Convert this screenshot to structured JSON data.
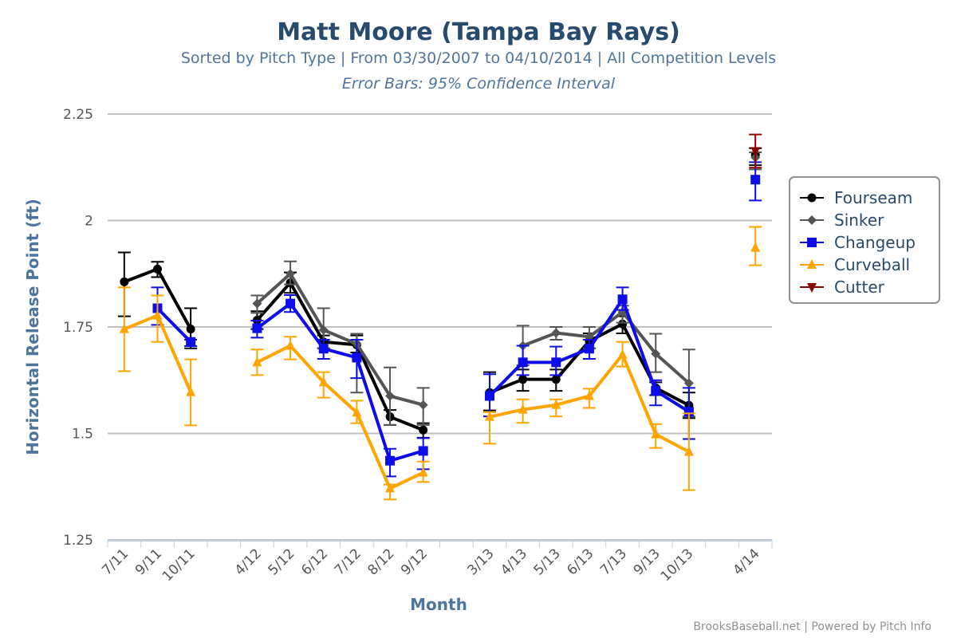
{
  "chart_data": {
    "type": "line",
    "title": "Matt Moore (Tampa Bay Rays)",
    "subtitle": "Sorted by Pitch Type | From 03/30/2007 to 04/10/2014 | All Competition Levels",
    "error_note": "Error Bars: 95% Confidence Interval",
    "xlabel": "Month",
    "ylabel": "Horizontal Release Point (ft)",
    "ylim": [
      1.25,
      2.25
    ],
    "yticks": [
      "1.25",
      "1.5",
      "1.75",
      "2",
      "2.25"
    ],
    "ytick_values": [
      1.25,
      1.5,
      1.75,
      2,
      2.25
    ],
    "grid": true,
    "legend_position": "right",
    "categories": [
      "7/11",
      "9/11",
      "10/11",
      "",
      "4/12",
      "5/12",
      "6/12",
      "7/12",
      "8/12",
      "9/12",
      "",
      "3/13",
      "4/13",
      "5/13",
      "6/13",
      "7/13",
      "9/13",
      "10/13",
      "",
      "4/14"
    ],
    "series": [
      {
        "name": "Fourseam",
        "color": "#000000",
        "marker": "circle",
        "values": [
          1.856,
          1.886,
          1.745,
          null,
          1.766,
          1.854,
          1.715,
          1.708,
          1.539,
          1.508,
          null,
          1.596,
          1.627,
          1.627,
          1.717,
          1.757,
          1.607,
          1.566,
          null,
          2.154
        ],
        "error": [
          [
            1.775,
            1.925
          ],
          [
            1.867,
            1.903
          ],
          [
            1.7,
            1.794
          ],
          null,
          [
            1.745,
            1.787
          ],
          [
            1.83,
            1.878
          ],
          [
            1.7,
            1.73
          ],
          [
            1.69,
            1.73
          ],
          [
            1.52,
            1.555
          ],
          [
            1.49,
            1.524
          ],
          null,
          [
            1.554,
            1.644
          ],
          [
            1.6,
            1.65
          ],
          [
            1.6,
            1.65
          ],
          [
            1.7,
            1.735
          ],
          [
            1.735,
            1.775
          ],
          [
            1.59,
            1.62
          ],
          [
            1.536,
            1.596
          ],
          null,
          [
            2.13,
            2.17
          ]
        ]
      },
      {
        "name": "Sinker",
        "color": "#555555",
        "marker": "diamond",
        "values": [
          null,
          null,
          null,
          null,
          1.805,
          1.875,
          1.743,
          1.71,
          1.588,
          1.567,
          null,
          null,
          1.706,
          1.736,
          1.727,
          1.785,
          1.687,
          1.618,
          null,
          2.148
        ],
        "error": [
          null,
          null,
          null,
          null,
          [
            1.783,
            1.824
          ],
          [
            1.85,
            1.904
          ],
          [
            1.7,
            1.794
          ],
          [
            1.596,
            1.734
          ],
          [
            1.52,
            1.655
          ],
          [
            1.52,
            1.607
          ],
          null,
          null,
          [
            1.66,
            1.753
          ],
          [
            1.72,
            1.75
          ],
          [
            1.7,
            1.75
          ],
          [
            1.76,
            1.8
          ],
          [
            1.644,
            1.734
          ],
          [
            1.54,
            1.697
          ],
          null,
          [
            2.12,
            2.16
          ]
        ]
      },
      {
        "name": "Changeup",
        "color": "#0d0dea",
        "marker": "square",
        "values": [
          null,
          1.794,
          1.715,
          null,
          1.747,
          1.805,
          1.699,
          1.678,
          1.436,
          1.459,
          null,
          1.588,
          1.667,
          1.667,
          1.699,
          1.815,
          1.6,
          1.551,
          null,
          2.096
        ],
        "error": [
          null,
          [
            1.755,
            1.843
          ],
          [
            1.705,
            1.72
          ],
          null,
          [
            1.725,
            1.765
          ],
          [
            1.785,
            1.825
          ],
          [
            1.675,
            1.72
          ],
          [
            1.63,
            1.72
          ],
          [
            1.399,
            1.464
          ],
          [
            1.416,
            1.489
          ],
          null,
          [
            1.54,
            1.639
          ],
          [
            1.637,
            1.706
          ],
          [
            1.637,
            1.704
          ],
          [
            1.675,
            1.72
          ],
          [
            1.79,
            1.843
          ],
          [
            1.566,
            1.625
          ],
          [
            1.487,
            1.607
          ],
          null,
          [
            2.047,
            2.137
          ]
        ]
      },
      {
        "name": "Curveball",
        "color": "#ffa500",
        "marker": "triangle",
        "values": [
          1.745,
          1.777,
          1.597,
          null,
          1.667,
          1.706,
          1.62,
          1.549,
          1.371,
          1.408,
          null,
          1.539,
          1.556,
          1.567,
          1.588,
          1.685,
          1.498,
          1.457,
          null,
          1.936
        ],
        "error": [
          [
            1.646,
            1.843
          ],
          [
            1.715,
            1.824
          ],
          [
            1.519,
            1.674
          ],
          null,
          [
            1.637,
            1.697
          ],
          [
            1.674,
            1.727
          ],
          [
            1.584,
            1.644
          ],
          [
            1.524,
            1.577
          ],
          [
            1.345,
            1.38
          ],
          [
            1.386,
            1.434
          ],
          null,
          [
            1.476,
            1.55
          ],
          [
            1.525,
            1.58
          ],
          [
            1.54,
            1.58
          ],
          [
            1.56,
            1.605
          ],
          [
            1.657,
            1.715
          ],
          [
            1.466,
            1.522
          ],
          [
            1.367,
            1.547
          ],
          null,
          [
            1.895,
            1.985
          ]
        ]
      },
      {
        "name": "Cutter",
        "color": "#8b0000",
        "marker": "triangle-down",
        "values": [
          null,
          null,
          null,
          null,
          null,
          null,
          null,
          null,
          null,
          null,
          null,
          null,
          null,
          null,
          null,
          null,
          null,
          null,
          null,
          2.163
        ],
        "error": [
          null,
          null,
          null,
          null,
          null,
          null,
          null,
          null,
          null,
          null,
          null,
          null,
          null,
          null,
          null,
          null,
          null,
          null,
          null,
          [
            2.124,
            2.202
          ]
        ]
      }
    ]
  },
  "credit": "BrooksBaseball.net | Powered by Pitch Info"
}
